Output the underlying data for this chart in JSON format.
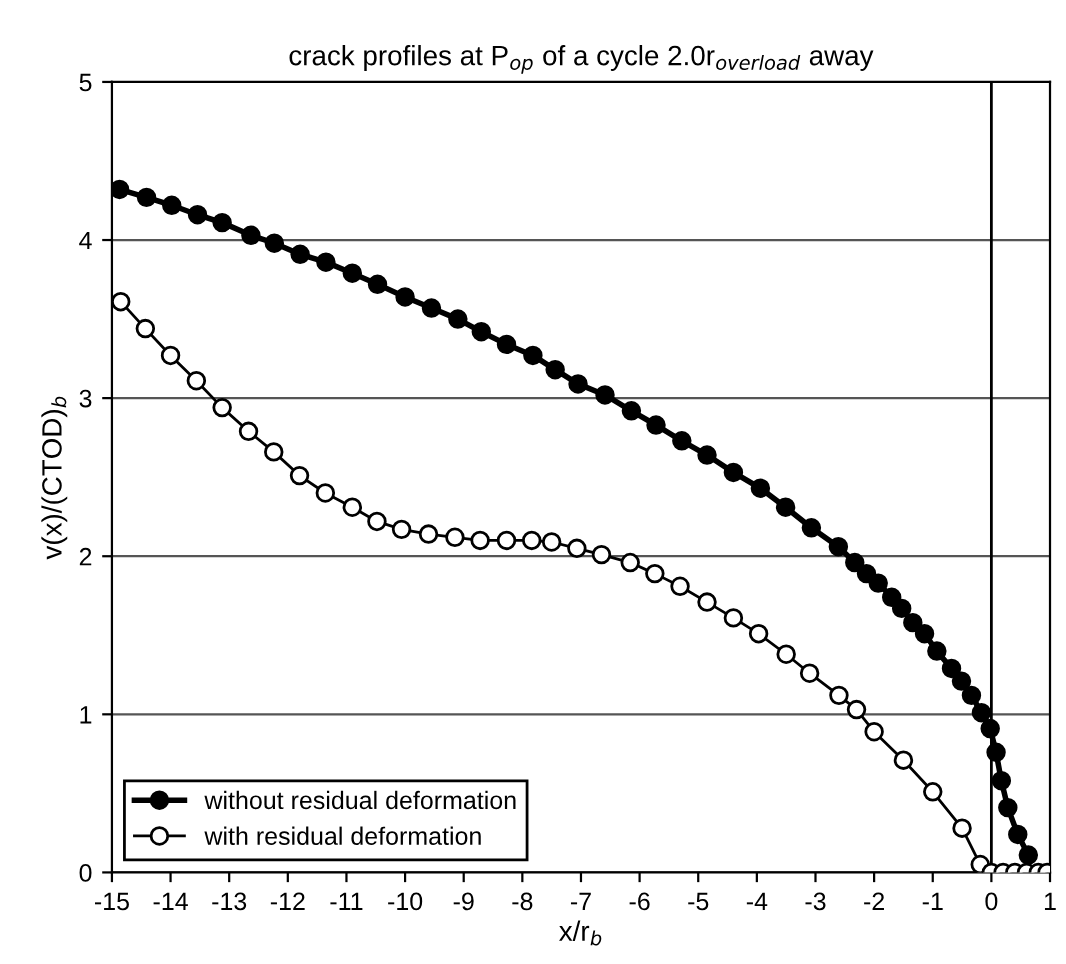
{
  "chart_data": {
    "type": "line",
    "title": "crack profiles at P$_{op}$ of a cycle 2.0r$_{overload}$ away",
    "xlabel": "x/r$_{b}$",
    "ylabel": "v(x)/(CTOD)$_{b}$",
    "xlim": [
      -15,
      1
    ],
    "xticks": [
      -15,
      -14,
      -13,
      -12,
      -11,
      -10,
      -9,
      -8,
      -7,
      -6,
      -5,
      -4,
      -3,
      -2,
      -1,
      0,
      1
    ],
    "ylim": [
      0,
      5
    ],
    "yticks": [
      0,
      1,
      2,
      3,
      4,
      5
    ],
    "grid": "y",
    "legend": "bottom left",
    "ref_lines": [
      {
        "axis": "x",
        "value": 0,
        "color": "#000000"
      }
    ],
    "series": [
      {
        "name": "without residual deformation",
        "color": "#000000",
        "marker": "circle",
        "x": [
          -14.87,
          -14.41,
          -13.98,
          -13.54,
          -13.12,
          -12.63,
          -12.23,
          -11.79,
          -11.35,
          -10.9,
          -10.47,
          -10.0,
          -9.55,
          -9.1,
          -8.7,
          -8.27,
          -7.82,
          -7.44,
          -7.05,
          -6.59,
          -6.14,
          -5.72,
          -5.28,
          -4.85,
          -4.4,
          -3.94,
          -3.51,
          -3.07,
          -2.61,
          -2.33,
          -2.13,
          -1.93,
          -1.7,
          -1.53,
          -1.34,
          -1.14,
          -0.93,
          -0.68,
          -0.51,
          -0.34,
          -0.17,
          -0.02,
          0.08,
          0.17,
          0.28,
          0.45,
          0.63
        ],
        "values": [
          4.32,
          4.27,
          4.22,
          4.16,
          4.11,
          4.03,
          3.98,
          3.91,
          3.86,
          3.79,
          3.72,
          3.64,
          3.57,
          3.5,
          3.42,
          3.34,
          3.27,
          3.18,
          3.09,
          3.02,
          2.92,
          2.83,
          2.73,
          2.64,
          2.53,
          2.43,
          2.31,
          2.18,
          2.06,
          1.96,
          1.89,
          1.83,
          1.74,
          1.67,
          1.58,
          1.51,
          1.4,
          1.29,
          1.21,
          1.12,
          1.01,
          0.91,
          0.76,
          0.58,
          0.41,
          0.24,
          0.11
        ]
      },
      {
        "name": "with residual deformation",
        "color": "#000000",
        "marker": "circle",
        "x": [
          -14.85,
          -14.43,
          -14.0,
          -13.56,
          -13.12,
          -12.67,
          -12.24,
          -11.8,
          -11.36,
          -10.9,
          -10.48,
          -10.06,
          -9.6,
          -9.15,
          -8.72,
          -8.27,
          -7.84,
          -7.5,
          -7.07,
          -6.65,
          -6.16,
          -5.74,
          -5.31,
          -4.85,
          -4.4,
          -3.97,
          -3.5,
          -3.1,
          -2.6,
          -2.3,
          -2.0,
          -1.5,
          -1.0,
          -0.5,
          -0.19,
          0,
          0.2,
          0.4,
          0.6,
          0.8,
          0.95
        ],
        "values": [
          3.61,
          3.44,
          3.27,
          3.11,
          2.94,
          2.79,
          2.66,
          2.51,
          2.4,
          2.31,
          2.22,
          2.17,
          2.14,
          2.12,
          2.1,
          2.1,
          2.1,
          2.09,
          2.05,
          2.01,
          1.96,
          1.89,
          1.81,
          1.71,
          1.61,
          1.51,
          1.38,
          1.26,
          1.12,
          1.03,
          0.89,
          0.71,
          0.51,
          0.28,
          0.05,
          0,
          0,
          0,
          0,
          0,
          0
        ]
      }
    ]
  }
}
